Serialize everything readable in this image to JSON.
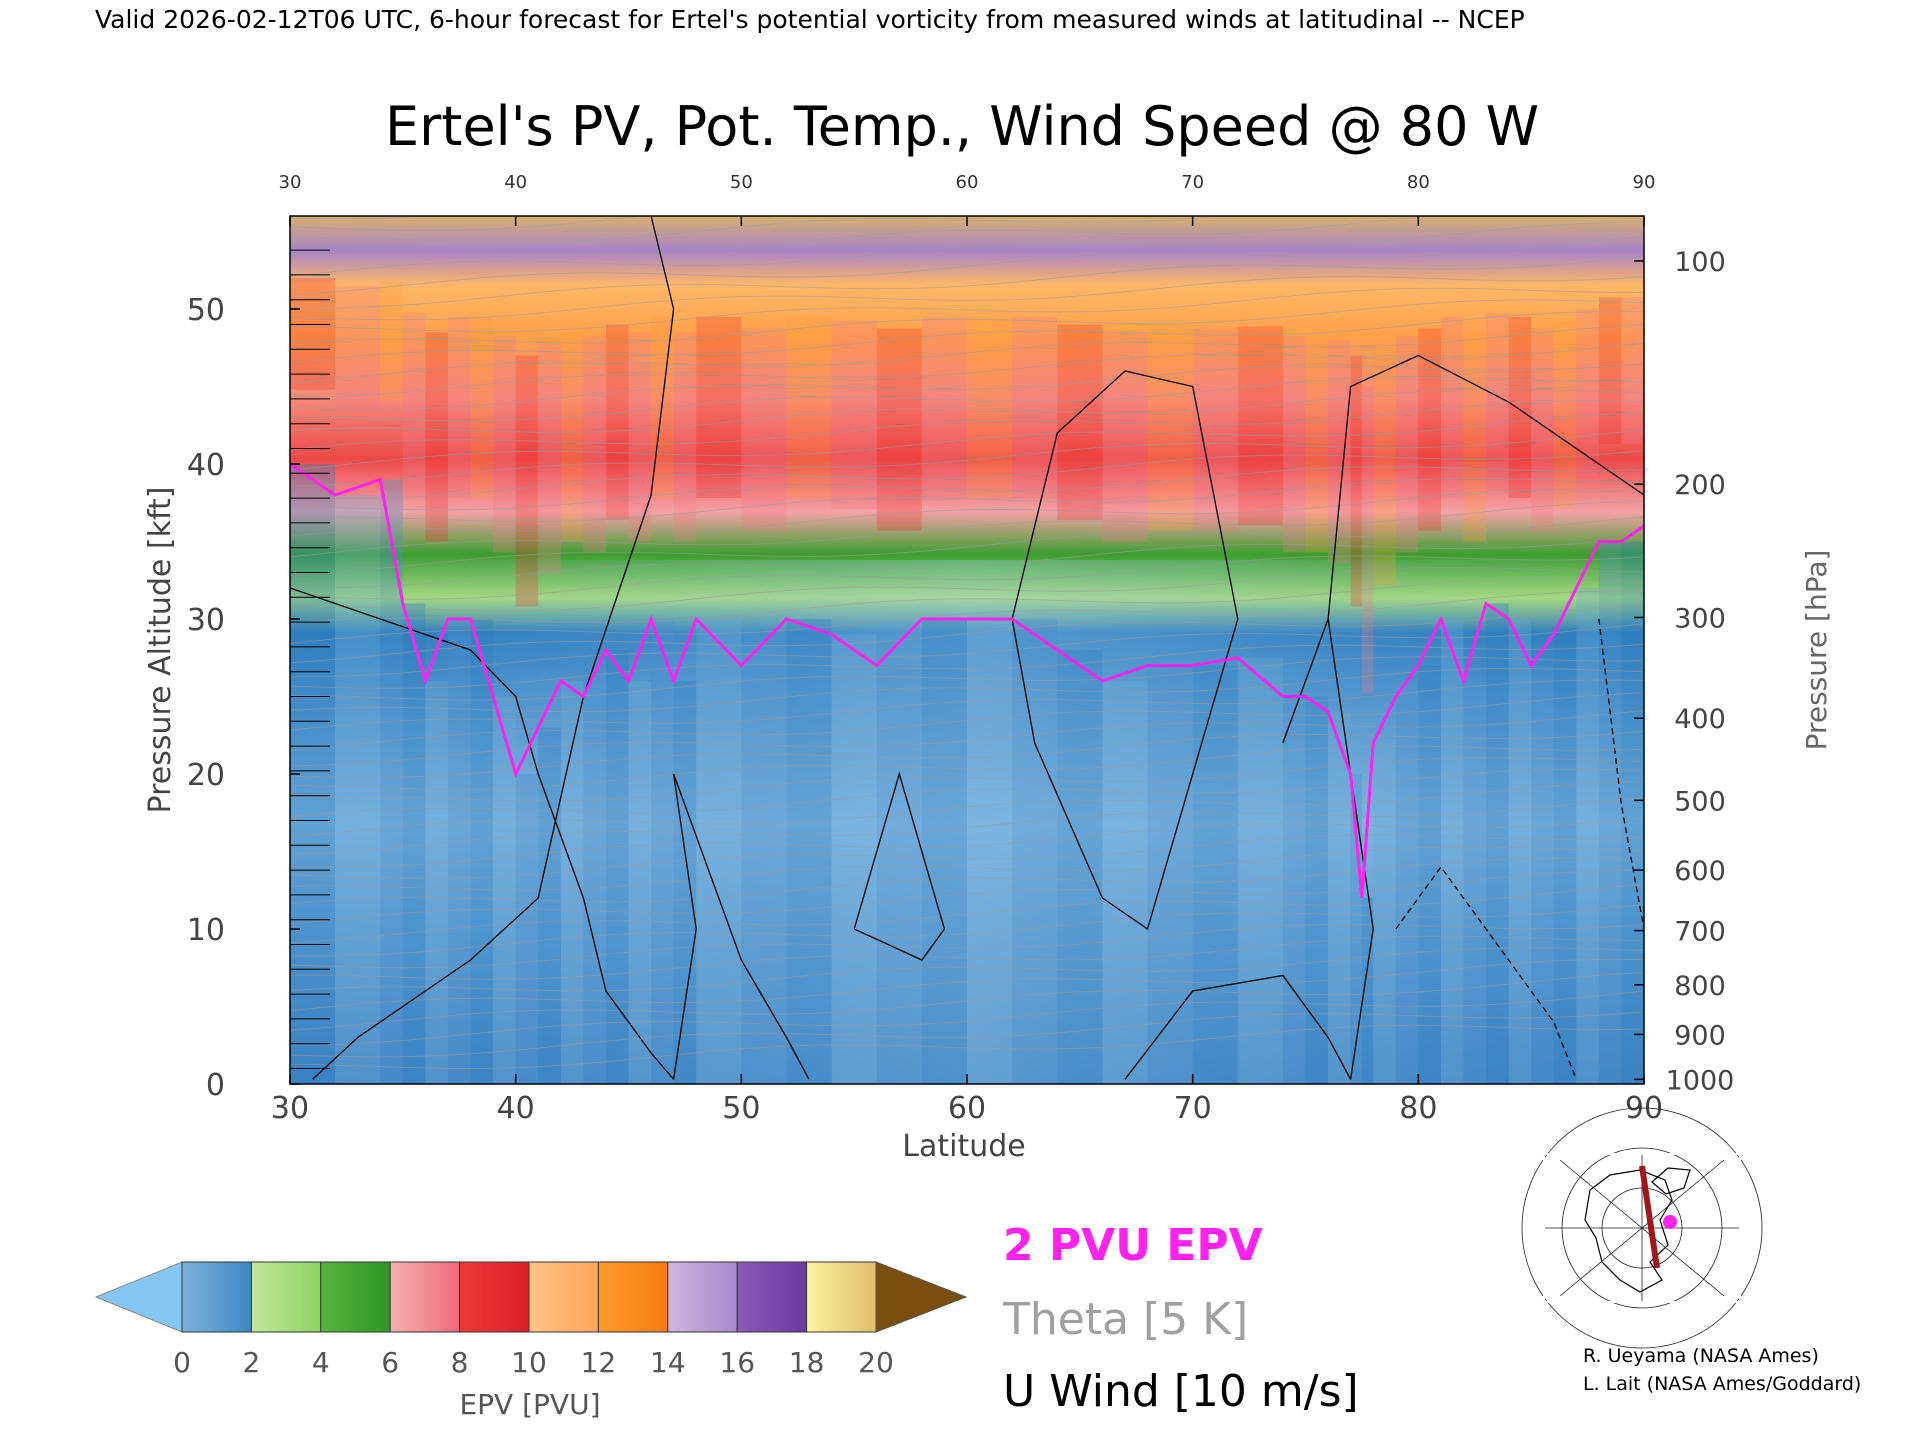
{
  "header": "Valid 2026-02-12T06 UTC, 6-hour forecast for Ertel's potential vorticity from measured winds at latitudinal -- NCEP",
  "chart_data": {
    "type": "heatmap",
    "title": "Ertel's PV, Pot. Temp., Wind Speed @ 80 W",
    "xlabel": "Latitude",
    "ylabel_left": "Pressure Altitude [kft]",
    "ylabel_right": "Pressure [hPa]",
    "xlim": [
      30,
      90
    ],
    "ylim": [
      0,
      56
    ],
    "x_ticks": [
      "30",
      "40",
      "50",
      "60",
      "70",
      "80",
      "90"
    ],
    "top_ticks": [
      "30",
      "40",
      "50",
      "60",
      "70",
      "80",
      "90"
    ],
    "y_ticks": [
      "0",
      "10",
      "20",
      "30",
      "40",
      "50"
    ],
    "pressure_ticks": [
      {
        "label": "100",
        "kft": 53.1
      },
      {
        "label": "200",
        "kft": 38.7
      },
      {
        "label": "300",
        "kft": 30.1
      },
      {
        "label": "400",
        "kft": 23.6
      },
      {
        "label": "500",
        "kft": 18.3
      },
      {
        "label": "600",
        "kft": 13.8
      },
      {
        "label": "700",
        "kft": 9.9
      },
      {
        "label": "800",
        "kft": 6.4
      },
      {
        "label": "900",
        "kft": 3.2
      },
      {
        "label": "1000",
        "kft": 0.3
      }
    ],
    "pv2_tropopause_kft": {
      "lat": [
        30,
        32,
        34,
        35,
        36,
        37,
        38,
        39,
        40,
        41,
        42,
        43,
        44,
        45,
        46,
        47,
        48,
        50,
        52,
        54,
        56,
        58,
        60,
        62,
        64,
        66,
        68,
        70,
        72,
        74,
        75,
        76,
        77,
        77.5,
        78,
        79,
        80,
        81,
        82,
        83,
        84,
        85,
        86,
        87,
        88,
        89,
        90
      ],
      "kft": [
        40,
        38,
        39,
        31,
        26,
        30,
        30,
        25,
        20,
        23,
        26,
        25,
        28,
        26,
        30,
        26,
        30,
        27,
        30,
        29,
        27,
        30,
        30,
        30,
        28,
        26,
        27,
        27,
        27.5,
        25,
        25,
        24,
        20,
        12,
        22,
        25,
        27,
        30,
        26,
        31,
        30,
        27,
        29,
        32,
        35,
        35,
        36
      ]
    },
    "colorbar": {
      "label": "EPV [PVU]",
      "ticks": [
        "0",
        "2",
        "4",
        "6",
        "8",
        "10",
        "12",
        "14",
        "16",
        "18",
        "20"
      ],
      "bands": [
        {
          "from": 0,
          "to": 2,
          "colors": [
            "#7ab2dc",
            "#3f87c4"
          ]
        },
        {
          "from": 2,
          "to": 4,
          "colors": [
            "#c2e69a",
            "#8ed466"
          ]
        },
        {
          "from": 4,
          "to": 6,
          "colors": [
            "#58b43e",
            "#2f9628"
          ]
        },
        {
          "from": 6,
          "to": 8,
          "colors": [
            "#f4b1b1",
            "#f06a7a"
          ]
        },
        {
          "from": 8,
          "to": 10,
          "colors": [
            "#ee3a3a",
            "#d8202a"
          ]
        },
        {
          "from": 10,
          "to": 12,
          "colors": [
            "#ffc488",
            "#ffa45a"
          ]
        },
        {
          "from": 12,
          "to": 14,
          "colors": [
            "#ff9a2c",
            "#f47c10"
          ]
        },
        {
          "from": 14,
          "to": 16,
          "colors": [
            "#cdb6dd",
            "#a888cc"
          ]
        },
        {
          "from": 16,
          "to": 18,
          "colors": [
            "#8a5cb8",
            "#6a3aa0"
          ]
        },
        {
          "from": 18,
          "to": 20,
          "colors": [
            "#fbf3a0",
            "#e0bd6a"
          ]
        }
      ],
      "under_color": "#86c6f2",
      "over_color": "#7a4e0e"
    },
    "legend": {
      "pv_line": "2 PVU EPV",
      "theta": "Theta [5 K]",
      "wind": "U Wind [10 m/s]"
    },
    "colors": {
      "pv_line": "#ff22ee",
      "theta": "#9a9a9a",
      "wind": "#000000"
    }
  },
  "credits": [
    "R. Ueyama (NASA Ames)",
    "L. Lait (NASA Ames/Goddard)"
  ]
}
